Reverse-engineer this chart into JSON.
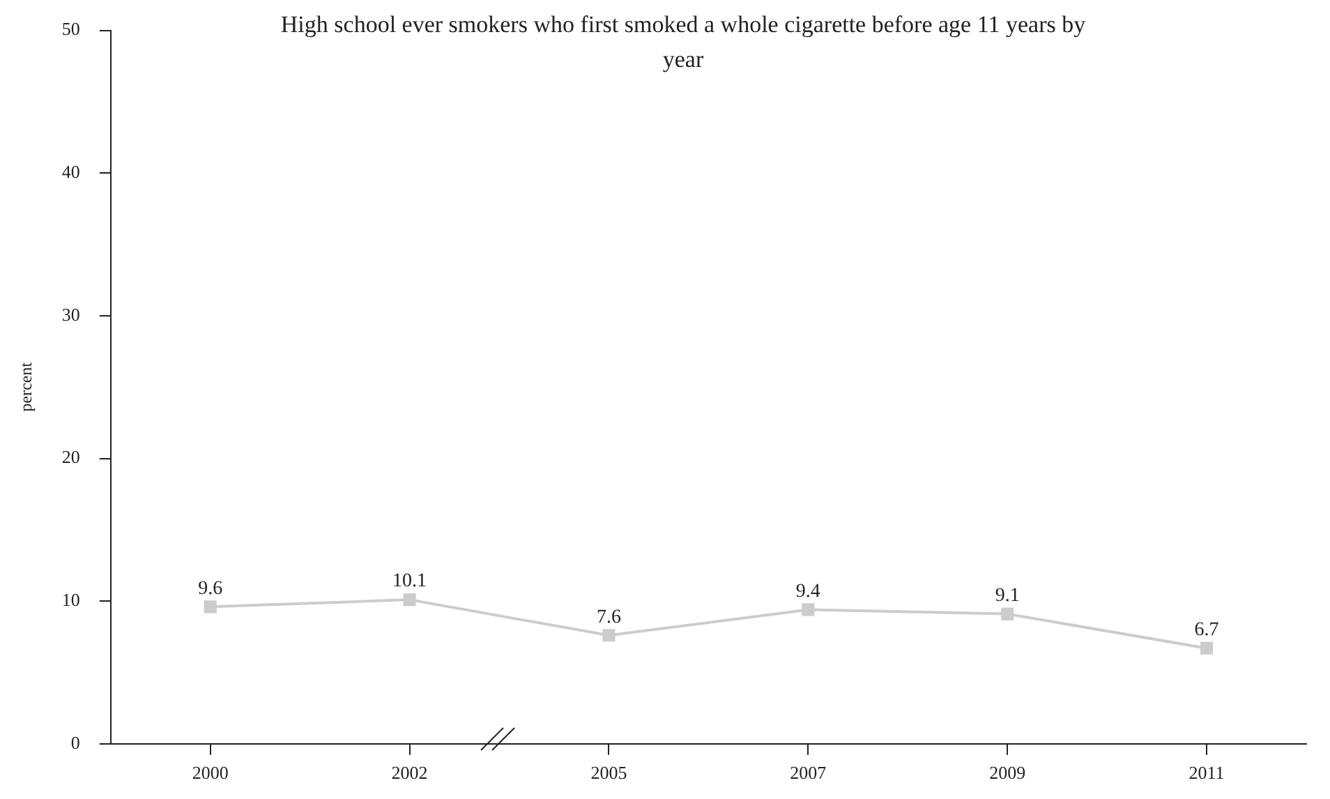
{
  "chart_data": {
    "type": "line",
    "title": "High school ever smokers who first smoked a whole cigarette before age 11 years by year",
    "ylabel": "percent",
    "categories": [
      "2000",
      "2002",
      "2005",
      "2007",
      "2009",
      "2011"
    ],
    "series": [
      {
        "color": "#cccccc",
        "values": [
          9.6,
          10.1,
          7.6,
          9.4,
          9.1,
          6.7
        ]
      }
    ],
    "ylim": [
      0,
      50
    ],
    "yticks": [
      0,
      10,
      20,
      30,
      40,
      50
    ],
    "grid": false,
    "legend": false,
    "marker": "square",
    "line_style": "solid",
    "data_labels": true
  }
}
